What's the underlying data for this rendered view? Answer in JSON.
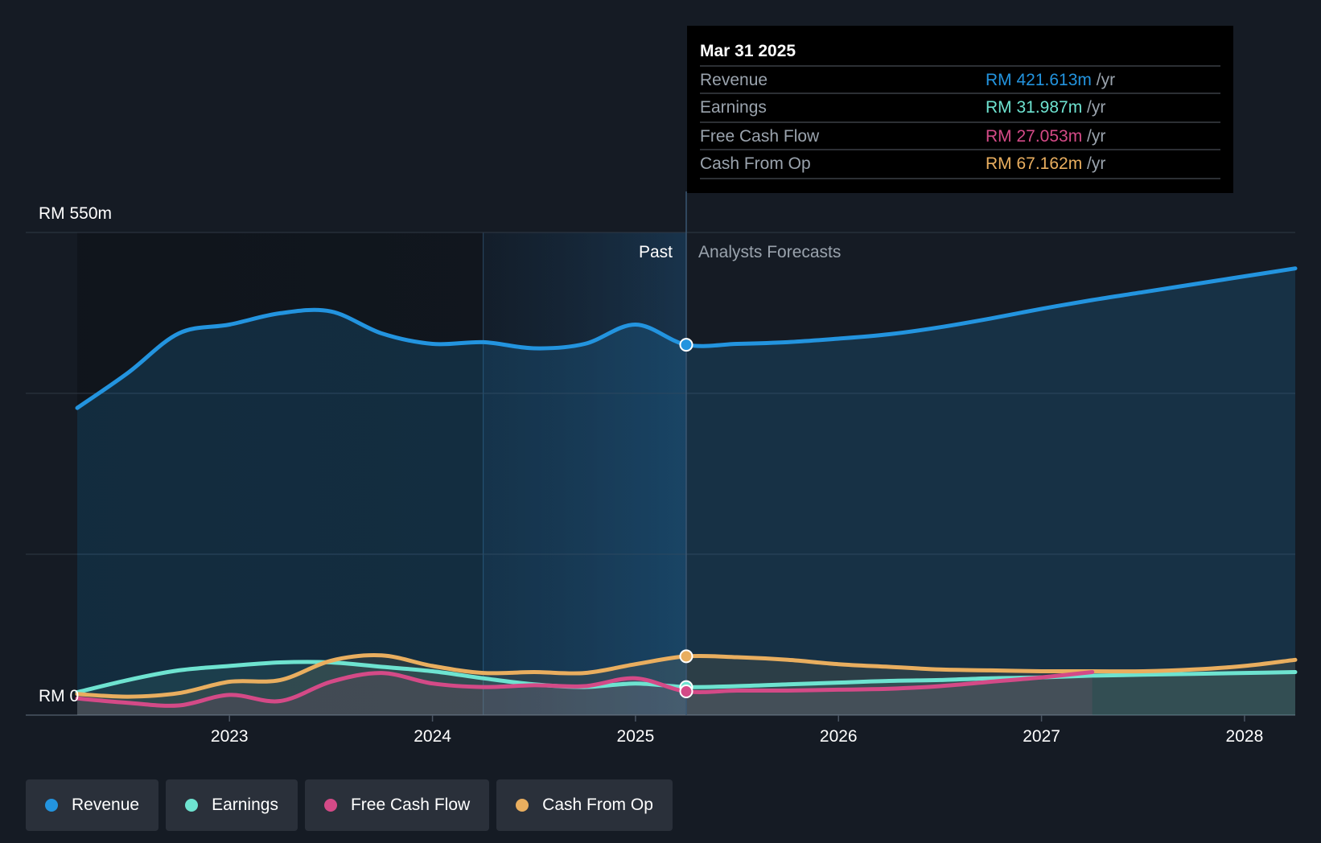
{
  "chart_data": {
    "type": "line",
    "currency": "RM",
    "y_top_label": "RM 550m",
    "y_bottom_label": "RM 0",
    "ylim": [
      0,
      550
    ],
    "xlim": [
      2022.25,
      2028.25
    ],
    "x_ticks": [
      2023,
      2024,
      2025,
      2026,
      2027,
      2028
    ],
    "x_tick_labels": [
      "2023",
      "2024",
      "2025",
      "2026",
      "2027",
      "2028"
    ],
    "grid": true,
    "past_label": "Past",
    "forecast_label": "Analysts Forecasts",
    "past_end": 2025.25,
    "highlight_start": 2024.25,
    "series": [
      {
        "name": "Revenue",
        "color": "#2394df",
        "x": [
          2022.25,
          2022.5,
          2022.75,
          2023.0,
          2023.25,
          2023.5,
          2023.75,
          2024.0,
          2024.25,
          2024.5,
          2024.75,
          2025.0,
          2025.25,
          2025.5,
          2025.75,
          2026.0,
          2026.25,
          2026.5,
          2026.75,
          2027.0,
          2027.25,
          2027.5,
          2027.75,
          2028.0,
          2028.25
        ],
        "values": [
          350,
          390,
          435,
          445,
          458,
          460,
          435,
          423,
          425,
          418,
          423,
          445,
          422,
          423,
          425,
          429,
          434,
          442,
          452,
          463,
          473,
          482,
          491,
          500,
          509
        ]
      },
      {
        "name": "Earnings",
        "color": "#6ee3d0",
        "x": [
          2022.25,
          2022.5,
          2022.75,
          2023.0,
          2023.25,
          2023.5,
          2023.75,
          2024.0,
          2024.25,
          2024.5,
          2024.75,
          2025.0,
          2025.25,
          2025.5,
          2025.75,
          2026.0,
          2026.25,
          2026.5,
          2026.75,
          2027.0,
          2027.25,
          2027.5,
          2027.75,
          2028.0,
          2028.25
        ],
        "values": [
          26,
          40,
          51,
          56,
          60,
          60,
          55,
          50,
          42,
          35,
          32,
          36,
          32,
          33,
          35,
          37,
          39,
          40,
          42,
          43,
          45,
          46,
          47,
          48,
          49
        ]
      },
      {
        "name": "Free Cash Flow",
        "color": "#d44a87",
        "x": [
          2022.25,
          2022.5,
          2022.75,
          2023.0,
          2023.25,
          2023.5,
          2023.75,
          2024.0,
          2024.25,
          2024.5,
          2024.75,
          2025.0,
          2025.25,
          2025.5,
          2025.75,
          2026.0,
          2026.25,
          2026.5,
          2026.75,
          2027.0,
          2027.25
        ],
        "values": [
          19,
          14,
          11,
          23,
          16,
          38,
          48,
          36,
          32,
          34,
          33,
          42,
          27,
          28,
          28,
          29,
          30,
          33,
          38,
          43,
          49
        ]
      },
      {
        "name": "Cash From Op",
        "color": "#e9ae5f",
        "x": [
          2022.25,
          2022.5,
          2022.75,
          2023.0,
          2023.25,
          2023.5,
          2023.75,
          2024.0,
          2024.25,
          2024.5,
          2024.75,
          2025.0,
          2025.25,
          2025.5,
          2025.75,
          2026.0,
          2026.25,
          2026.5,
          2026.75,
          2027.0,
          2027.25,
          2027.5,
          2027.75,
          2028.0,
          2028.25
        ],
        "values": [
          24,
          21,
          25,
          38,
          40,
          62,
          68,
          56,
          48,
          49,
          48,
          58,
          67,
          66,
          63,
          58,
          55,
          52,
          51,
          50,
          50,
          50,
          52,
          56,
          63
        ]
      }
    ],
    "tooltip": {
      "date": "Mar 31 2025",
      "unit": "/yr",
      "rows": [
        {
          "label": "Revenue",
          "value": "RM 421.613m",
          "color": "#2394df"
        },
        {
          "label": "Earnings",
          "value": "RM 31.987m",
          "color": "#6ee3d0"
        },
        {
          "label": "Free Cash Flow",
          "value": "RM 27.053m",
          "color": "#d44a87"
        },
        {
          "label": "Cash From Op",
          "value": "RM 67.162m",
          "color": "#e9ae5f"
        }
      ]
    }
  },
  "legend": {
    "items": [
      {
        "label": "Revenue",
        "color": "#2394df"
      },
      {
        "label": "Earnings",
        "color": "#6ee3d0"
      },
      {
        "label": "Free Cash Flow",
        "color": "#d44a87"
      },
      {
        "label": "Cash From Op",
        "color": "#e9ae5f"
      }
    ]
  }
}
